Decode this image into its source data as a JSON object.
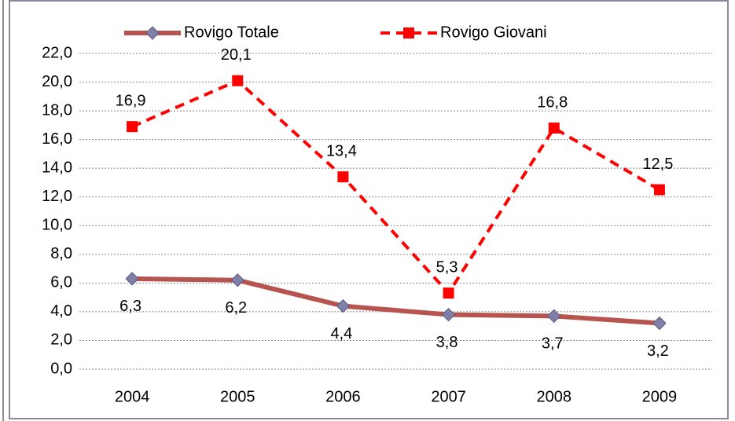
{
  "chart_data": {
    "type": "line",
    "categories": [
      "2004",
      "2005",
      "2006",
      "2007",
      "2008",
      "2009"
    ],
    "series": [
      {
        "name": "Rovigo Totale",
        "color": "#b85450",
        "marker": "diamond",
        "marker_color": "#7f7fa8",
        "dash": false,
        "label_position": "below",
        "values": [
          6.3,
          6.2,
          4.4,
          3.8,
          3.7,
          3.2
        ],
        "value_labels": [
          "6,3",
          "6,2",
          "4,4",
          "3,8",
          "3,7",
          "3,2"
        ]
      },
      {
        "name": "Rovigo Giovani",
        "color": "#ff0000",
        "marker": "square",
        "marker_color": "#ff0000",
        "dash": true,
        "label_position": "above",
        "values": [
          16.9,
          20.1,
          13.4,
          5.3,
          16.8,
          12.5
        ],
        "value_labels": [
          "16,9",
          "20,1",
          "13,4",
          "5,3",
          "16,8",
          "12,5"
        ]
      }
    ],
    "ylim": [
      0,
      22
    ],
    "yticks": [
      {
        "value": 0,
        "label": "0,0"
      },
      {
        "value": 2,
        "label": "2,0"
      },
      {
        "value": 4,
        "label": "4,0"
      },
      {
        "value": 6,
        "label": "6,0"
      },
      {
        "value": 8,
        "label": "8,0"
      },
      {
        "value": 10,
        "label": "10,0"
      },
      {
        "value": 12,
        "label": "12,0"
      },
      {
        "value": 14,
        "label": "14,0"
      },
      {
        "value": 16,
        "label": "16,0"
      },
      {
        "value": 18,
        "label": "18,0"
      },
      {
        "value": 20,
        "label": "20,0"
      },
      {
        "value": 22,
        "label": "22,0"
      }
    ],
    "grid": true,
    "legend": "top"
  }
}
